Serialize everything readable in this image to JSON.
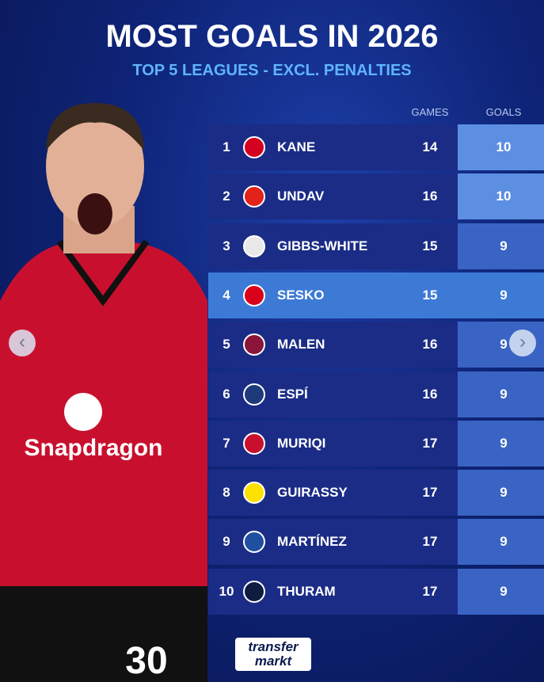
{
  "header": {
    "title": "MOST GOALS IN 2026",
    "subtitle": "TOP 5 LEAGUES - EXCL. PENALTIES"
  },
  "table": {
    "columns": [
      "GAMES",
      "GOALS"
    ],
    "rows": [
      {
        "rank": 1,
        "player": "KANE",
        "games": 14,
        "goals": 10
      },
      {
        "rank": 2,
        "player": "UNDAV",
        "games": 16,
        "goals": 10
      },
      {
        "rank": 3,
        "player": "GIBBS-WHITE",
        "games": 15,
        "goals": 9
      },
      {
        "rank": 4,
        "player": "SESKO",
        "games": 15,
        "goals": 9
      },
      {
        "rank": 5,
        "player": "MALEN",
        "games": 16,
        "goals": 9
      },
      {
        "rank": 6,
        "player": "ESPÍ",
        "games": 16,
        "goals": 9
      },
      {
        "rank": 7,
        "player": "MURIQI",
        "games": 17,
        "goals": 9
      },
      {
        "rank": 8,
        "player": "GUIRASSY",
        "games": 17,
        "goals": 9
      },
      {
        "rank": 9,
        "player": "MARTÍNEZ",
        "games": 17,
        "goals": 9
      },
      {
        "rank": 10,
        "player": "THURAM",
        "games": 17,
        "goals": 9
      }
    ]
  },
  "photo": {
    "sponsor": "Snapdragon",
    "number": "30"
  },
  "logo": {
    "line1": "transfer",
    "line2": "markt"
  }
}
